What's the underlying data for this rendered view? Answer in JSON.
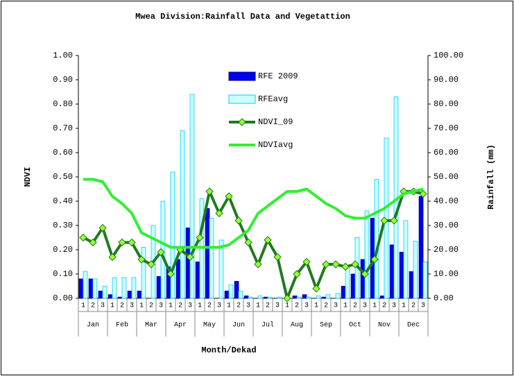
{
  "chart_data": {
    "type": "bar",
    "title": "Mwea Division:Rainfall Data and Vegetattion",
    "x_label": "Month/Dekad",
    "y_label": "NDVI",
    "y2_label": "Rainfall (mm)",
    "categories": [
      "1",
      "2",
      "3",
      "1",
      "2",
      "3",
      "1",
      "2",
      "3",
      "1",
      "2",
      "3",
      "1",
      "2",
      "3",
      "1",
      "2",
      "3",
      "1",
      "2",
      "3",
      "1",
      "2",
      "3",
      "1",
      "2",
      "3",
      "1",
      "2",
      "3",
      "1",
      "2",
      "3",
      "1",
      "2",
      "3"
    ],
    "groups": [
      "Jan",
      "Feb",
      "Mar",
      "Apr",
      "May",
      "Jun",
      "Jul",
      "Aug",
      "Sep",
      "Oct",
      "Nov",
      "Dec"
    ],
    "ylim": [
      0,
      1
    ],
    "yticks": [
      {
        "value": 0,
        "label": "0.00"
      },
      {
        "value": 0.1,
        "label": "0.10"
      },
      {
        "value": 0.2,
        "label": "0.20"
      },
      {
        "value": 0.3,
        "label": "0.30"
      },
      {
        "value": 0.4,
        "label": "0.40"
      },
      {
        "value": 0.5,
        "label": "0.50"
      },
      {
        "value": 0.6,
        "label": "0.60"
      },
      {
        "value": 0.7,
        "label": "0.70"
      },
      {
        "value": 0.8,
        "label": "0.80"
      },
      {
        "value": 0.9,
        "label": "0.90"
      },
      {
        "value": 1,
        "label": "1.00"
      }
    ],
    "y2lim": [
      0,
      100
    ],
    "y2ticks": [
      {
        "value": 0,
        "label": "0.00"
      },
      {
        "value": 10,
        "label": "10.00"
      },
      {
        "value": 20,
        "label": "20.00"
      },
      {
        "value": 30,
        "label": "30.00"
      },
      {
        "value": 40,
        "label": "40.00"
      },
      {
        "value": 50,
        "label": "50.00"
      },
      {
        "value": 60,
        "label": "60.00"
      },
      {
        "value": 70,
        "label": "70.00"
      },
      {
        "value": 80,
        "label": "80.00"
      },
      {
        "value": 90,
        "label": "90.00"
      },
      {
        "value": 100,
        "label": "100.00"
      }
    ],
    "series": [
      {
        "name": "RFE 2009",
        "type": "bar",
        "axis": "y2",
        "color": "#0000ee",
        "edge": "#000080",
        "values": [
          8,
          8,
          3,
          1.5,
          0.5,
          3,
          3,
          0,
          9,
          13,
          16,
          29,
          15,
          37,
          0,
          3,
          7,
          1,
          0,
          0.5,
          0,
          0,
          1,
          1.5,
          0,
          0.5,
          0,
          5,
          10,
          16,
          33,
          1,
          22,
          19,
          11,
          42
        ]
      },
      {
        "name": "RFEavg",
        "type": "bar",
        "axis": "y2",
        "color": "#ccffff",
        "edge": "#00ccff",
        "values": [
          11,
          8,
          5,
          8.5,
          8.5,
          8.5,
          21,
          30,
          40,
          52,
          69,
          84,
          41,
          33,
          24,
          5.5,
          3,
          0.5,
          1,
          0.5,
          0.5,
          0,
          0.5,
          0.5,
          1,
          1.5,
          2,
          13,
          25,
          36,
          49,
          66,
          83,
          32,
          23.5,
          15
        ]
      },
      {
        "name": "NDVI_09",
        "type": "line",
        "axis": "y",
        "color": "#1e7b1e",
        "marker": "diamond",
        "marker_color": "#99ff33",
        "values": [
          0.25,
          0.23,
          0.29,
          0.17,
          0.23,
          0.23,
          0.16,
          0.14,
          0.19,
          0.1,
          0.2,
          0.17,
          0.25,
          0.44,
          0.35,
          0.42,
          0.32,
          0.23,
          0.14,
          0.24,
          0.17,
          0.0,
          0.1,
          0.15,
          0.04,
          0.14,
          0.14,
          0.13,
          0.14,
          0.1,
          0.16,
          0.32,
          0.32,
          0.44,
          0.44,
          0.43
        ]
      },
      {
        "name": "NDVIavg",
        "type": "line",
        "axis": "y",
        "color": "#33ee33",
        "values": [
          0.49,
          0.49,
          0.48,
          0.42,
          0.39,
          0.35,
          0.27,
          0.25,
          0.23,
          0.21,
          0.21,
          0.21,
          0.21,
          0.21,
          0.21,
          0.22,
          0.25,
          0.28,
          0.35,
          0.38,
          0.41,
          0.44,
          0.44,
          0.45,
          0.42,
          0.39,
          0.37,
          0.34,
          0.33,
          0.33,
          0.35,
          0.37,
          0.4,
          0.43,
          0.44,
          0.45
        ]
      }
    ]
  }
}
